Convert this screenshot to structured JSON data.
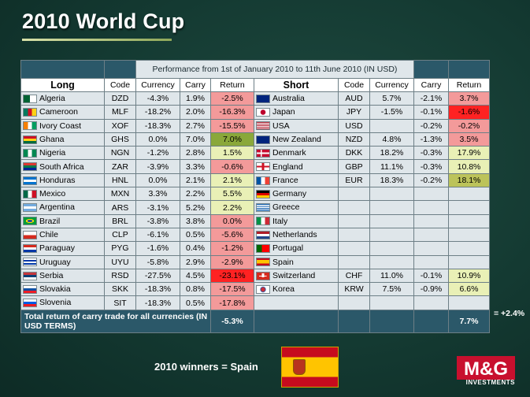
{
  "title": "2010 World Cup",
  "perf_title": "Performance from 1st of January 2010 to 11th June 2010 (IN USD)",
  "headers": {
    "long": "Long",
    "short": "Short",
    "code": "Code",
    "currency": "Currency",
    "carry": "Carry",
    "return": "Return"
  },
  "rows": [
    {
      "l_country": "Algeria",
      "l_code": "DZD",
      "l_cur": "-4.3%",
      "l_carry": "1.9%",
      "l_ret": "-2.5%",
      "l_cls": "r-neg1",
      "l_flag": "algeria-flag",
      "s_country": "Australia",
      "s_code": "AUD",
      "s_cur": "5.7%",
      "s_carry": "-2.1%",
      "s_ret": "3.7%",
      "s_cls": "r-neg1",
      "s_flag": "australia-flag"
    },
    {
      "l_country": "Cameroon",
      "l_code": "MLF",
      "l_cur": "-18.2%",
      "l_carry": "2.0%",
      "l_ret": "-16.3%",
      "l_cls": "r-neg1",
      "l_flag": "cameroon-flag",
      "s_country": "Japan",
      "s_code": "JPY",
      "s_cur": "-1.5%",
      "s_carry": "-0.1%",
      "s_ret": "-1.6%",
      "s_cls": "r-neg2",
      "s_flag": "japan-flag"
    },
    {
      "l_country": "Ivory  Coast",
      "l_code": "XOF",
      "l_cur": "-18.3%",
      "l_carry": "2.7%",
      "l_ret": "-15.5%",
      "l_cls": "r-neg1",
      "l_flag": "ivory-coast-flag",
      "s_country": "USA",
      "s_code": "USD",
      "s_cur": "",
      "s_carry": "-0.2%",
      "s_ret": "-0.2%",
      "s_cls": "r-neg1",
      "s_flag": "usa-flag"
    },
    {
      "l_country": "Ghana",
      "l_code": "GHS",
      "l_cur": "0.0%",
      "l_carry": "7.0%",
      "l_ret": "7.0%",
      "l_cls": "r-pos3",
      "l_flag": "ghana-flag",
      "s_country": "New Zealand",
      "s_code": "NZD",
      "s_cur": "4.8%",
      "s_carry": "-1.3%",
      "s_ret": "3.5%",
      "s_cls": "r-neg1",
      "s_flag": "new-zealand-flag"
    },
    {
      "l_country": "Nigeria",
      "l_code": "NGN",
      "l_cur": "-1.2%",
      "l_carry": "2.8%",
      "l_ret": "1.5%",
      "l_cls": "r-pos1",
      "l_flag": "nigeria-flag",
      "s_country": "Denmark",
      "s_code": "DKK",
      "s_cur": "18.2%",
      "s_carry": "-0.3%",
      "s_ret": "17.9%",
      "s_cls": "r-pos1",
      "s_flag": "denmark-flag"
    },
    {
      "l_country": "South Africa",
      "l_code": "ZAR",
      "l_cur": "-3.9%",
      "l_carry": "3.3%",
      "l_ret": "-0.6%",
      "l_cls": "r-neg1",
      "l_flag": "south-africa-flag",
      "s_country": "England",
      "s_code": "GBP",
      "s_cur": "11.1%",
      "s_carry": "-0.3%",
      "s_ret": "10.8%",
      "s_cls": "r-pos1",
      "s_flag": "england-flag"
    },
    {
      "l_country": "Honduras",
      "l_code": "HNL",
      "l_cur": "0.0%",
      "l_carry": "2.1%",
      "l_ret": "2.1%",
      "l_cls": "r-pos1",
      "l_flag": "honduras-flag",
      "s_country": "France",
      "s_code": "EUR",
      "s_cur": "18.3%",
      "s_carry": "-0.2%",
      "s_ret": "18.1%",
      "s_cls": "r-pos2",
      "s_flag": "france-flag"
    },
    {
      "l_country": "Mexico",
      "l_code": "MXN",
      "l_cur": "3.3%",
      "l_carry": "2.2%",
      "l_ret": "5.5%",
      "l_cls": "r-pos1",
      "l_flag": "mexico-flag",
      "s_country": "Germany",
      "s_code": "",
      "s_cur": "",
      "s_carry": "",
      "s_ret": "",
      "s_cls": "",
      "s_flag": "germany-flag"
    },
    {
      "l_country": "Argentina",
      "l_code": "ARS",
      "l_cur": "-3.1%",
      "l_carry": "5.2%",
      "l_ret": "2.2%",
      "l_cls": "r-pos1",
      "l_flag": "argentina-flag",
      "s_country": "Greece",
      "s_code": "",
      "s_cur": "",
      "s_carry": "",
      "s_ret": "",
      "s_cls": "",
      "s_flag": "greece-flag"
    },
    {
      "l_country": "Brazil",
      "l_code": "BRL",
      "l_cur": "-3.8%",
      "l_carry": "3.8%",
      "l_ret": "0.0%",
      "l_cls": "r-zero",
      "l_flag": "brazil-flag",
      "s_country": "Italy",
      "s_code": "",
      "s_cur": "",
      "s_carry": "",
      "s_ret": "",
      "s_cls": "",
      "s_flag": "italy-flag"
    },
    {
      "l_country": "Chile",
      "l_code": "CLP",
      "l_cur": "-6.1%",
      "l_carry": "0.5%",
      "l_ret": "-5.6%",
      "l_cls": "r-neg1",
      "l_flag": "chile-flag",
      "s_country": "Netherlands",
      "s_code": "",
      "s_cur": "",
      "s_carry": "",
      "s_ret": "",
      "s_cls": "",
      "s_flag": "netherlands-flag"
    },
    {
      "l_country": "Paraguay",
      "l_code": "PYG",
      "l_cur": "-1.6%",
      "l_carry": "0.4%",
      "l_ret": "-1.2%",
      "l_cls": "r-neg1",
      "l_flag": "paraguay-flag",
      "s_country": "Portugal",
      "s_code": "",
      "s_cur": "",
      "s_carry": "",
      "s_ret": "",
      "s_cls": "",
      "s_flag": "portugal-flag"
    },
    {
      "l_country": "Uruguay",
      "l_code": "UYU",
      "l_cur": "-5.8%",
      "l_carry": "2.9%",
      "l_ret": "-2.9%",
      "l_cls": "r-neg1",
      "l_flag": "uruguay-flag",
      "s_country": "Spain",
      "s_code": "",
      "s_cur": "",
      "s_carry": "",
      "s_ret": "",
      "s_cls": "",
      "s_flag": "spain-flag"
    },
    {
      "l_country": "Serbia",
      "l_code": "RSD",
      "l_cur": "-27.5%",
      "l_carry": "4.5%",
      "l_ret": "-23.1%",
      "l_cls": "r-neg2",
      "l_flag": "serbia-flag",
      "s_country": "Switzerland",
      "s_code": "CHF",
      "s_cur": "11.0%",
      "s_carry": "-0.1%",
      "s_ret": "10.9%",
      "s_cls": "r-pos1",
      "s_flag": "switzerland-flag"
    },
    {
      "l_country": "Slovakia",
      "l_code": "SKK",
      "l_cur": "-18.3%",
      "l_carry": "0.8%",
      "l_ret": "-17.5%",
      "l_cls": "r-neg1",
      "l_flag": "slovakia-flag",
      "s_country": "Korea",
      "s_code": "KRW",
      "s_cur": "7.5%",
      "s_carry": "-0.9%",
      "s_ret": "6.6%",
      "s_cls": "r-pos1",
      "s_flag": "korea-flag"
    },
    {
      "l_country": "Slovenia",
      "l_code": "SIT",
      "l_cur": "-18.3%",
      "l_carry": "0.5%",
      "l_ret": "-17.8%",
      "l_cls": "r-neg1",
      "l_flag": "slovenia-flag",
      "s_country": "",
      "s_code": "",
      "s_cur": "",
      "s_carry": "",
      "s_ret": "",
      "s_cls": "",
      "s_flag": ""
    }
  ],
  "total": {
    "label": "Total return of carry trade for all currencies (IN USD TERMS)",
    "long_return": "-5.3%",
    "short_return": "7.7%",
    "note": "= +2.4%"
  },
  "winners": "2010 winners  = Spain",
  "logo": {
    "brand": "M&G",
    "sub": "INVESTMENTS"
  },
  "colors": {
    "background": "#143a32",
    "header_dark": "#2b5869",
    "cell": "#dfe6ea",
    "neg_light": "#f39a9a",
    "neg_strong": "#ff2222",
    "pos_light": "#e9f0b6",
    "pos_mid": "#bcc35a",
    "pos_strong": "#8aa83a",
    "brand_red": "#c8102e"
  }
}
